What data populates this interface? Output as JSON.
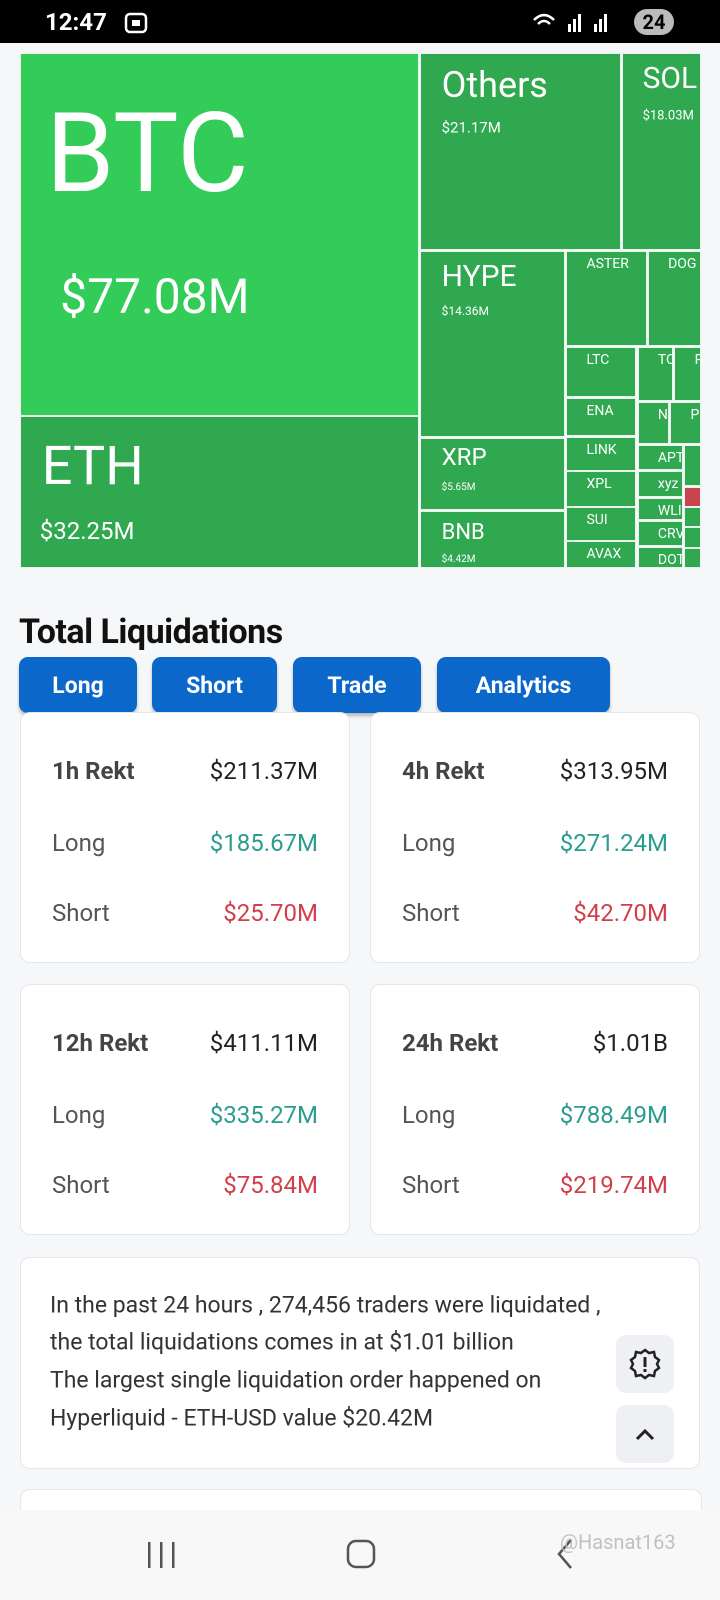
{
  "status_bar": {
    "time": "12:47",
    "battery": "24"
  },
  "treemap": {
    "tiles": [
      {
        "label": "BTC",
        "value": "$77.08M"
      },
      {
        "label": "ETH",
        "value": "$32.25M"
      },
      {
        "label": "Others",
        "value": "$21.17M"
      },
      {
        "label": "SOL",
        "value": "$18.03M"
      },
      {
        "label": "HYPE",
        "value": "$14.36M"
      },
      {
        "label": "XRP",
        "value": "$5.65M"
      },
      {
        "label": "BNB",
        "value": "$4.42M"
      },
      {
        "label": "ASTER"
      },
      {
        "label": "DOG"
      },
      {
        "label": "LTC"
      },
      {
        "label": "TO"
      },
      {
        "label": "P"
      },
      {
        "label": "ENA"
      },
      {
        "label": "N"
      },
      {
        "label": "P"
      },
      {
        "label": "LINK"
      },
      {
        "label": "XPL"
      },
      {
        "label": "SUI"
      },
      {
        "label": "AVAX"
      },
      {
        "label": "APT"
      },
      {
        "label": "xyz"
      },
      {
        "label": "WLI"
      },
      {
        "label": "CRV"
      },
      {
        "label": "DOT"
      }
    ]
  },
  "section": {
    "title": "Total Liquidations",
    "tabs": [
      "Long",
      "Short",
      "Trade",
      "Analytics"
    ]
  },
  "cards": [
    {
      "title": "1h Rekt",
      "total": "$211.37M",
      "long_label": "Long",
      "long": "$185.67M",
      "short_label": "Short",
      "short": "$25.70M"
    },
    {
      "title": "4h Rekt",
      "total": "$313.95M",
      "long_label": "Long",
      "long": "$271.24M",
      "short_label": "Short",
      "short": "$42.70M"
    },
    {
      "title": "12h Rekt",
      "total": "$411.11M",
      "long_label": "Long",
      "long": "$335.27M",
      "short_label": "Short",
      "short": "$75.84M"
    },
    {
      "title": "24h Rekt",
      "total": "$1.01B",
      "long_label": "Long",
      "long": "$788.49M",
      "short_label": "Short",
      "short": "$219.74M"
    }
  ],
  "summary": {
    "lines": [
      "In the past 24 hours , 274,456 traders were liquidated ,",
      "the total liquidations comes in at $1.01 billion",
      "The largest single liquidation order happened on",
      "Hyperliquid - ETH-USD value $20.42M"
    ]
  },
  "watermark": "@Hasnat163"
}
